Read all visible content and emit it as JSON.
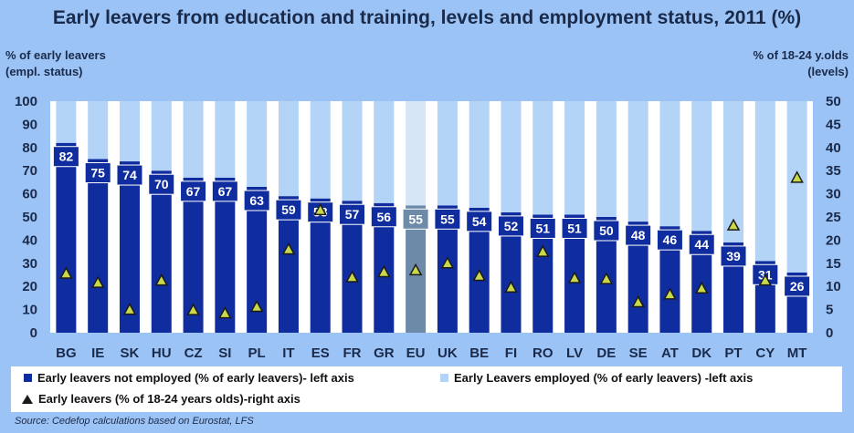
{
  "title": "Early leavers from education and training, levels and employment status, 2011 (%)",
  "left_axis_label": [
    "% of early leavers",
    "(empl. status)"
  ],
  "right_axis_label": [
    "% of 18-24 y.olds",
    "(levels)"
  ],
  "legend": {
    "not_employed": "Early leavers not employed  (% of early leavers)- left axis",
    "employed": "Early Leavers employed (% of early leavers) -left axis",
    "levels": "Early leavers (% of 18-24 years olds)-right axis"
  },
  "source": "Source: Cedefop calculations based on Eurostat, LFS",
  "colors": {
    "not_employed": "#0f2d9e",
    "employed": "#b3d3f7",
    "eu_not_employed": "#6d8aa8",
    "eu_employed": "#d6e6f7",
    "background": "#9cc3f5",
    "plot_bg": "#ffffff",
    "marker": "#1a1a1a",
    "marker_inner": "#c8d84a"
  },
  "chart_data": {
    "type": "bar",
    "stacked": true,
    "categories": [
      "BG",
      "IE",
      "SK",
      "HU",
      "CZ",
      "SI",
      "PL",
      "IT",
      "ES",
      "FR",
      "GR",
      "EU",
      "UK",
      "BE",
      "FI",
      "RO",
      "LV",
      "DE",
      "SE",
      "AT",
      "DK",
      "PT",
      "CY",
      "MT"
    ],
    "series": [
      {
        "name": "Early leavers not employed (% of early leavers)- left axis",
        "axis": "left",
        "values": [
          82,
          75,
          74,
          70,
          67,
          67,
          63,
          59,
          58,
          57,
          56,
          55,
          55,
          54,
          52,
          51,
          51,
          50,
          48,
          46,
          44,
          39,
          31,
          26
        ]
      },
      {
        "name": "Early Leavers employed (% of early leavers) -left axis",
        "axis": "left",
        "values": [
          18,
          25,
          26,
          30,
          33,
          33,
          37,
          41,
          42,
          43,
          44,
          45,
          45,
          46,
          48,
          49,
          49,
          50,
          52,
          54,
          56,
          61,
          69,
          74
        ]
      },
      {
        "name": "Early leavers (% of 18-24 years olds)-right axis",
        "axis": "right",
        "type": "scatter",
        "values": [
          12.8,
          10.8,
          5.0,
          11.3,
          4.9,
          4.2,
          5.6,
          18.0,
          26.5,
          12.0,
          13.1,
          13.5,
          15.0,
          12.3,
          9.8,
          17.5,
          11.8,
          11.6,
          6.6,
          8.3,
          9.6,
          23.2,
          11.3,
          33.5
        ]
      }
    ],
    "left_axis": {
      "min": 0,
      "max": 100,
      "ticks": [
        "0",
        "10",
        "20",
        "30",
        "40",
        "50",
        "60",
        "70",
        "80",
        "90",
        "100"
      ]
    },
    "right_axis": {
      "min": 0,
      "max": 50,
      "ticks": [
        "0",
        "5",
        "10",
        "15",
        "20",
        "25",
        "30",
        "35",
        "40",
        "45",
        "50"
      ]
    },
    "highlight_category": "EU",
    "grid": false
  }
}
